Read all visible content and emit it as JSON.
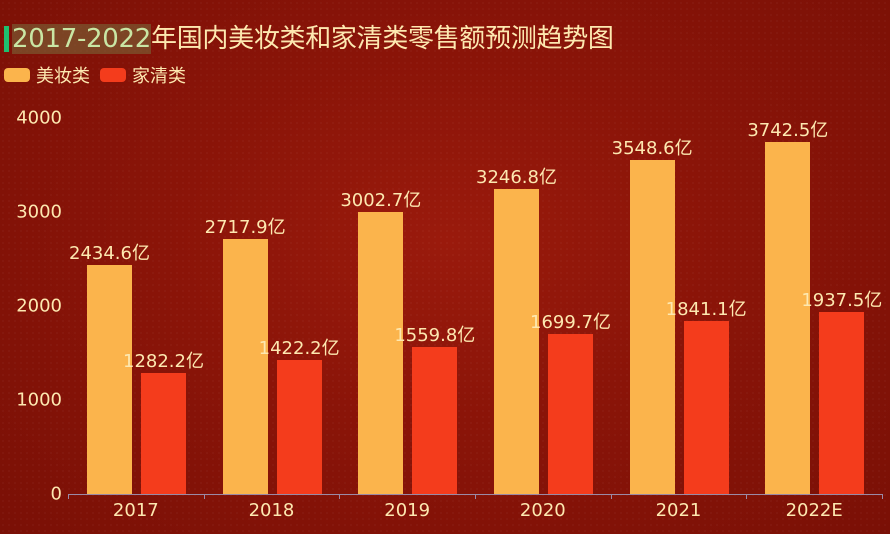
{
  "title": {
    "highlight": "2017-2022",
    "rest": "年国内美妆类和家清类零售额预测趋势图"
  },
  "legend": [
    {
      "label": "美妆类",
      "color": "#fbb44c"
    },
    {
      "label": "家清类",
      "color": "#f43c1c"
    }
  ],
  "y_axis": {
    "ticks": [
      "0",
      "1000",
      "2000",
      "3000",
      "4000"
    ]
  },
  "x_axis": {
    "ticks": [
      "2017",
      "2018",
      "2019",
      "2020",
      "2021",
      "2022E"
    ]
  },
  "labels": {
    "beauty": [
      "2434.6亿",
      "2717.9亿",
      "3002.7亿",
      "3246.8亿",
      "3548.6亿",
      "3742.5亿"
    ],
    "cleaning": [
      "1282.2亿",
      "1422.2亿",
      "1559.8亿",
      "1699.7亿",
      "1841.1亿",
      "1937.5亿"
    ]
  },
  "chart_data": {
    "type": "bar",
    "title": "2017-2022年国内美妆类和家清类零售额预测趋势图",
    "categories": [
      "2017",
      "2018",
      "2019",
      "2020",
      "2021",
      "2022E"
    ],
    "series": [
      {
        "name": "美妆类",
        "color": "#fbb44c",
        "values": [
          2434.6,
          2717.9,
          3002.7,
          3246.8,
          3548.6,
          3742.5
        ]
      },
      {
        "name": "家清类",
        "color": "#f43c1c",
        "values": [
          1282.2,
          1422.2,
          1559.8,
          1699.7,
          1841.1,
          1937.5
        ]
      }
    ],
    "unit_suffix": "亿",
    "xlabel": "",
    "ylabel": "",
    "ylim": [
      0,
      4000
    ],
    "yticks": [
      0,
      1000,
      2000,
      3000,
      4000
    ],
    "grid": false,
    "legend_position": "top-left"
  }
}
